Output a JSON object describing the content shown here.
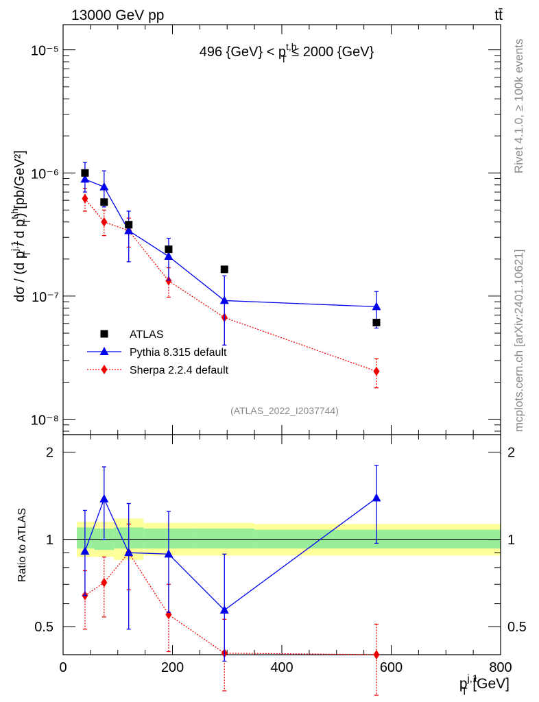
{
  "header": {
    "energy_label": "13000 GeV pp",
    "process_label": "tt̄",
    "side_label_top": "Rivet 4.1.0, ≥ 100k events",
    "side_label_bottom": "mcplots.cern.ch [arXiv:2401.10621]",
    "analysis_id": "(ATLAS_2022_I2037744)"
  },
  "chart_data": [
    {
      "type": "scatter",
      "panel": "main",
      "title": "496 {GeV} < p_{T}^{t,h} ≤ 2000 {GeV}",
      "ylabel": "dσ / (d p_{T}^{j,1} / d p_{T}^{t,h}) [pb/GeV²]",
      "xlim": [
        0,
        800
      ],
      "ylim": [
        7.5e-09,
        1.6e-05
      ],
      "yscale": "log",
      "yticks": [
        1e-08,
        1e-07,
        1e-06,
        1e-05
      ],
      "ytick_labels": [
        "10⁻⁸",
        "10⁻⁷",
        "10⁻⁶",
        "10⁻⁵"
      ],
      "legend_position": "lower-left",
      "series": [
        {
          "name": "ATLAS",
          "color": "#000000",
          "marker": "square",
          "line": "none",
          "x": [
            40,
            75,
            120,
            193,
            295,
            573
          ],
          "y": [
            1e-06,
            5.8e-07,
            3.8e-07,
            2.4e-07,
            1.65e-07,
            6.1e-08
          ]
        },
        {
          "name": "Pythia 8.315 default",
          "color": "#0000ee",
          "marker": "triangle",
          "line": "solid",
          "x": [
            40,
            75,
            120,
            193,
            295,
            573
          ],
          "y": [
            8.9e-07,
            7.7e-07,
            3.4e-07,
            2.1e-07,
            9.2e-08,
            8.2e-08
          ],
          "err_lo": [
            7e-07,
            5.3e-07,
            1.9e-07,
            1.35e-07,
            4e-08,
            5.5e-08
          ],
          "err_hi": [
            1.22e-06,
            1.04e-06,
            4.9e-07,
            2.95e-07,
            1.46e-07,
            1.09e-07
          ]
        },
        {
          "name": "Sherpa 2.2.4 default",
          "color": "#ee0000",
          "marker": "diamond",
          "line": "dotted",
          "x": [
            40,
            75,
            120,
            193,
            295,
            573
          ],
          "y": [
            6.2e-07,
            4e-07,
            3.4e-07,
            1.33e-07,
            6.7e-08,
            2.45e-08
          ],
          "err_lo": [
            4.9e-07,
            3.1e-07,
            2.5e-07,
            9.8e-08,
            4e-08,
            1.8e-08
          ],
          "err_hi": [
            7.5e-07,
            5e-07,
            4.3e-07,
            1.7e-07,
            9.3e-08,
            3.1e-08
          ]
        }
      ]
    },
    {
      "type": "line",
      "panel": "ratio",
      "ylabel": "Ratio to ATLAS",
      "xlabel": "p_{T}^{j,1} [GeV]",
      "xlim": [
        0,
        800
      ],
      "xticks": [
        0,
        200,
        400,
        600,
        800
      ],
      "xtick_labels": [
        "0",
        "200",
        "400",
        "600",
        "800"
      ],
      "ylim": [
        0.4,
        2.3
      ],
      "yscale": "log",
      "yticks": [
        0.5,
        1,
        2
      ],
      "ytick_labels": [
        "0.5",
        "1",
        "2"
      ],
      "bands": [
        {
          "x0": 25,
          "x1": 57,
          "inner": [
            0.93,
            1.1
          ],
          "outer": [
            0.87,
            1.15
          ]
        },
        {
          "x0": 57,
          "x1": 93,
          "inner": [
            0.92,
            1.09
          ],
          "outer": [
            0.87,
            1.15
          ]
        },
        {
          "x0": 93,
          "x1": 147,
          "inner": [
            0.93,
            1.1
          ],
          "outer": [
            0.85,
            1.18
          ]
        },
        {
          "x0": 147,
          "x1": 240,
          "inner": [
            0.93,
            1.09
          ],
          "outer": [
            0.88,
            1.14
          ]
        },
        {
          "x0": 240,
          "x1": 350,
          "inner": [
            0.93,
            1.09
          ],
          "outer": [
            0.88,
            1.14
          ]
        },
        {
          "x0": 350,
          "x1": 800,
          "inner": [
            0.93,
            1.08
          ],
          "outer": [
            0.88,
            1.13
          ]
        }
      ],
      "series": [
        {
          "name": "Pythia 8.315 default",
          "color": "#0000ee",
          "marker": "triangle",
          "line": "solid",
          "x": [
            40,
            75,
            120,
            193,
            295,
            573
          ],
          "y": [
            0.91,
            1.38,
            0.9,
            0.89,
            0.57,
            1.39
          ],
          "err_lo": [
            0.64,
            1.0,
            0.49,
            0.56,
            0.38,
            0.97
          ],
          "err_hi": [
            1.26,
            1.78,
            1.33,
            1.25,
            0.89,
            1.8
          ]
        },
        {
          "name": "Sherpa 2.2.4 default",
          "color": "#ee0000",
          "marker": "diamond",
          "line": "dotted",
          "x": [
            40,
            75,
            120,
            193,
            295,
            573
          ],
          "y": [
            0.64,
            0.71,
            0.9,
            0.55,
            0.405,
            0.4
          ],
          "err_lo": [
            0.49,
            0.54,
            0.67,
            0.41,
            0.3,
            0.29
          ],
          "err_hi": [
            0.78,
            0.87,
            1.13,
            0.7,
            0.53,
            0.51
          ]
        }
      ]
    }
  ]
}
